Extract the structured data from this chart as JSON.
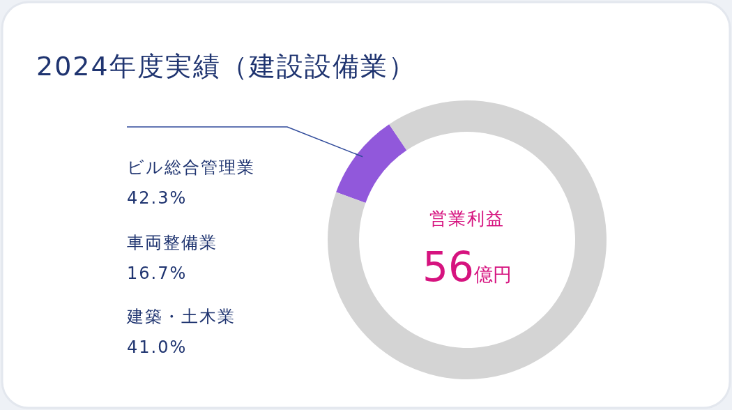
{
  "chart_data": {
    "type": "donut",
    "title": "2024年度実績（建設設備業）",
    "categories": [
      null,
      null
    ],
    "values": [
      10,
      90
    ],
    "colors": [
      "#9158db",
      "#d4d4d4"
    ],
    "annotations": [
      "ビル総合管理業",
      "42.3%",
      "車両整備業",
      "16.7%",
      "建築・土木業",
      "41.0%",
      "営業利益",
      "56億円"
    ]
  }
}
